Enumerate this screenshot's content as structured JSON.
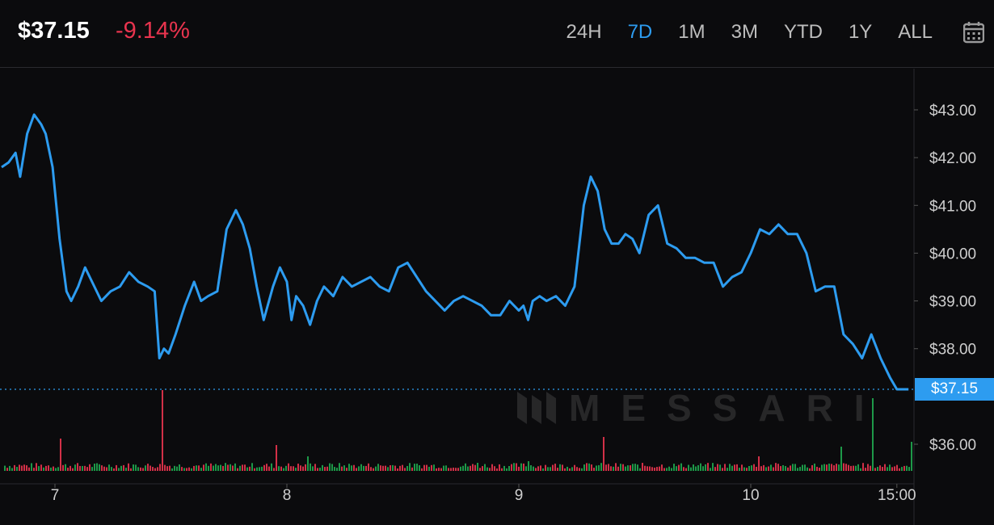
{
  "header": {
    "price": "$37.15",
    "change": "-9.14%",
    "ranges": [
      "24H",
      "7D",
      "1M",
      "3M",
      "YTD",
      "1Y",
      "ALL"
    ],
    "active_range": "7D",
    "calendar_icon": "calendar-icon"
  },
  "watermark": {
    "text": "MESSARI",
    "icon": "messari-logo"
  },
  "colors": {
    "line": "#2d9cf0",
    "up": "#1fa94f",
    "down": "#e8344e",
    "change": "#e8344e"
  },
  "chart_data": {
    "type": "line",
    "title": "",
    "xlabel": "",
    "ylabel": "",
    "ylim": [
      35.4,
      44.2
    ],
    "y_ticks": [
      36,
      37,
      38,
      39,
      40,
      41,
      42,
      43
    ],
    "y_tick_labels": [
      "$36.00",
      "",
      "$38.00",
      "$39.00",
      "$40.00",
      "$41.00",
      "$42.00",
      "$43.00"
    ],
    "x_ticks": [
      {
        "t": 7,
        "label": "7"
      },
      {
        "t": 8,
        "label": "8"
      },
      {
        "t": 9,
        "label": "9"
      },
      {
        "t": 10,
        "label": "10"
      },
      {
        "t": 10.63,
        "label": "15:00"
      }
    ],
    "xlim": [
      6.77,
      10.7
    ],
    "current_price": 37.15,
    "current_price_label": "$37.15",
    "series": [
      {
        "values_t": [
          6.77,
          6.8,
          6.83,
          6.85,
          6.88,
          6.91,
          6.94,
          6.96,
          6.99,
          7.02,
          7.05,
          7.07,
          7.1,
          7.13,
          7.16,
          7.2,
          7.24,
          7.28,
          7.32,
          7.36,
          7.4,
          7.43,
          7.45,
          7.47,
          7.49,
          7.52,
          7.56,
          7.6,
          7.63,
          7.66,
          7.7,
          7.74,
          7.78,
          7.81,
          7.84,
          7.87,
          7.9,
          7.94,
          7.97,
          8.0,
          8.02,
          8.04,
          8.07,
          8.1,
          8.13,
          8.16,
          8.2,
          8.24,
          8.28,
          8.32,
          8.36,
          8.4,
          8.44,
          8.48,
          8.52,
          8.56,
          8.6,
          8.64,
          8.68,
          8.72,
          8.76,
          8.8,
          8.84,
          8.88,
          8.92,
          8.96,
          9.0,
          9.02,
          9.04,
          9.06,
          9.09,
          9.12,
          9.16,
          9.2,
          9.24,
          9.28,
          9.31,
          9.34,
          9.37,
          9.4,
          9.43,
          9.46,
          9.49,
          9.52,
          9.56,
          9.6,
          9.64,
          9.68,
          9.72,
          9.76,
          9.8,
          9.84,
          9.88,
          9.92,
          9.96,
          10.0,
          10.04,
          10.08,
          10.12,
          10.16,
          10.2,
          10.24,
          10.28,
          10.32,
          10.36,
          10.4,
          10.44,
          10.48,
          10.52,
          10.56,
          10.6,
          10.63,
          10.66,
          10.68
        ],
        "values": [
          41.8,
          41.9,
          42.1,
          41.6,
          42.5,
          42.9,
          42.7,
          42.5,
          41.8,
          40.3,
          39.2,
          39.0,
          39.3,
          39.7,
          39.4,
          39.0,
          39.2,
          39.3,
          39.6,
          39.4,
          39.3,
          39.2,
          37.8,
          38.0,
          37.9,
          38.3,
          38.9,
          39.4,
          39.0,
          39.1,
          39.2,
          40.5,
          40.9,
          40.6,
          40.1,
          39.3,
          38.6,
          39.3,
          39.7,
          39.4,
          38.6,
          39.1,
          38.9,
          38.5,
          39.0,
          39.3,
          39.1,
          39.5,
          39.3,
          39.4,
          39.5,
          39.3,
          39.2,
          39.7,
          39.8,
          39.5,
          39.2,
          39.0,
          38.8,
          39.0,
          39.1,
          39.0,
          38.9,
          38.7,
          38.7,
          39.0,
          38.8,
          38.9,
          38.6,
          39.0,
          39.1,
          39.0,
          39.1,
          38.9,
          39.3,
          41.0,
          41.6,
          41.3,
          40.5,
          40.2,
          40.2,
          40.4,
          40.3,
          40.0,
          40.8,
          41.0,
          40.2,
          40.1,
          39.9,
          39.9,
          39.8,
          39.8,
          39.3,
          39.5,
          39.6,
          40.0,
          40.5,
          40.4,
          40.6,
          40.4,
          40.4,
          40.0,
          39.2,
          39.3,
          39.3,
          38.3,
          38.1,
          37.8,
          38.3,
          37.8,
          37.4,
          37.15,
          37.15,
          37.15
        ]
      }
    ]
  }
}
